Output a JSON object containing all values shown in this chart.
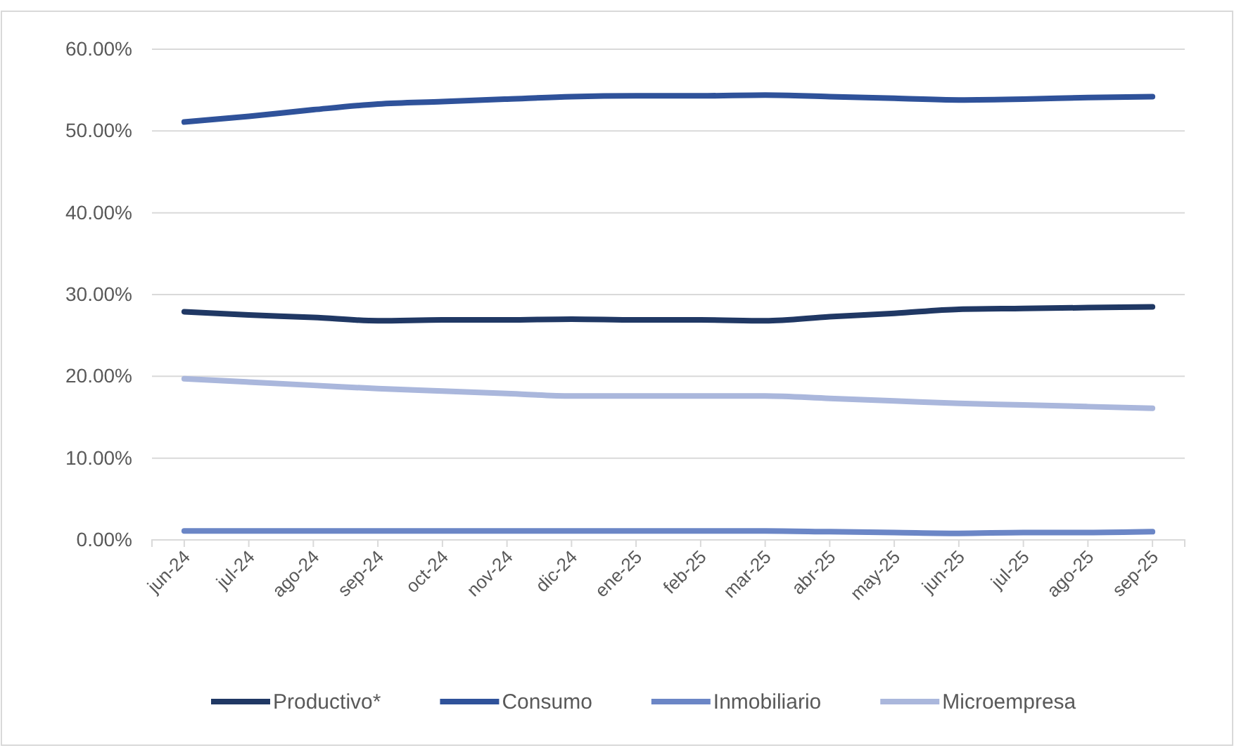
{
  "chart_data": {
    "type": "line",
    "categories": [
      "jun-24",
      "jul-24",
      "ago-24",
      "sep-24",
      "oct-24",
      "nov-24",
      "dic-24",
      "ene-25",
      "feb-25",
      "mar-25",
      "abr-25",
      "may-25",
      "jun-25",
      "jul-25",
      "ago-25",
      "sep-25"
    ],
    "series": [
      {
        "name": "Productivo*",
        "color": "#203864",
        "values": [
          27.9,
          27.5,
          27.2,
          26.8,
          26.9,
          26.9,
          27.0,
          26.9,
          26.9,
          26.8,
          27.3,
          27.7,
          28.2,
          28.3,
          28.4,
          28.5
        ]
      },
      {
        "name": "Consumo",
        "color": "#2f529a",
        "values": [
          51.1,
          51.8,
          52.6,
          53.3,
          53.6,
          53.9,
          54.2,
          54.3,
          54.3,
          54.4,
          54.2,
          54.0,
          53.8,
          53.9,
          54.1,
          54.2
        ]
      },
      {
        "name": "Inmobiliario",
        "color": "#6b86c6",
        "values": [
          1.1,
          1.1,
          1.1,
          1.1,
          1.1,
          1.1,
          1.1,
          1.1,
          1.1,
          1.1,
          1.0,
          0.9,
          0.8,
          0.9,
          0.9,
          1.0
        ]
      },
      {
        "name": "Microempresa",
        "color": "#aab7dc",
        "values": [
          19.7,
          19.3,
          18.9,
          18.5,
          18.2,
          17.9,
          17.6,
          17.6,
          17.6,
          17.6,
          17.3,
          17.0,
          16.7,
          16.5,
          16.3,
          16.1
        ]
      }
    ],
    "ylim": [
      0,
      60
    ],
    "yticks": [
      {
        "value": 0,
        "label": "0.00%"
      },
      {
        "value": 10,
        "label": "10.00%"
      },
      {
        "value": 20,
        "label": "20.00%"
      },
      {
        "value": 30,
        "label": "30.00%"
      },
      {
        "value": 40,
        "label": "40.00%"
      },
      {
        "value": 50,
        "label": "50.00%"
      },
      {
        "value": 60,
        "label": "60.00%"
      }
    ],
    "grid": "y",
    "legend": "bottom",
    "marker": "none",
    "line_style": "solid"
  }
}
